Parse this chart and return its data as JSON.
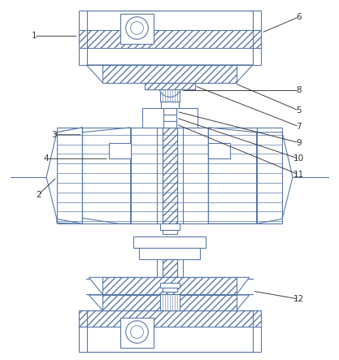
{
  "bg_color": "#ffffff",
  "line_color": "#5a7aaa",
  "label_color": "#333333",
  "fig_width": 4.17,
  "fig_height": 4.43
}
